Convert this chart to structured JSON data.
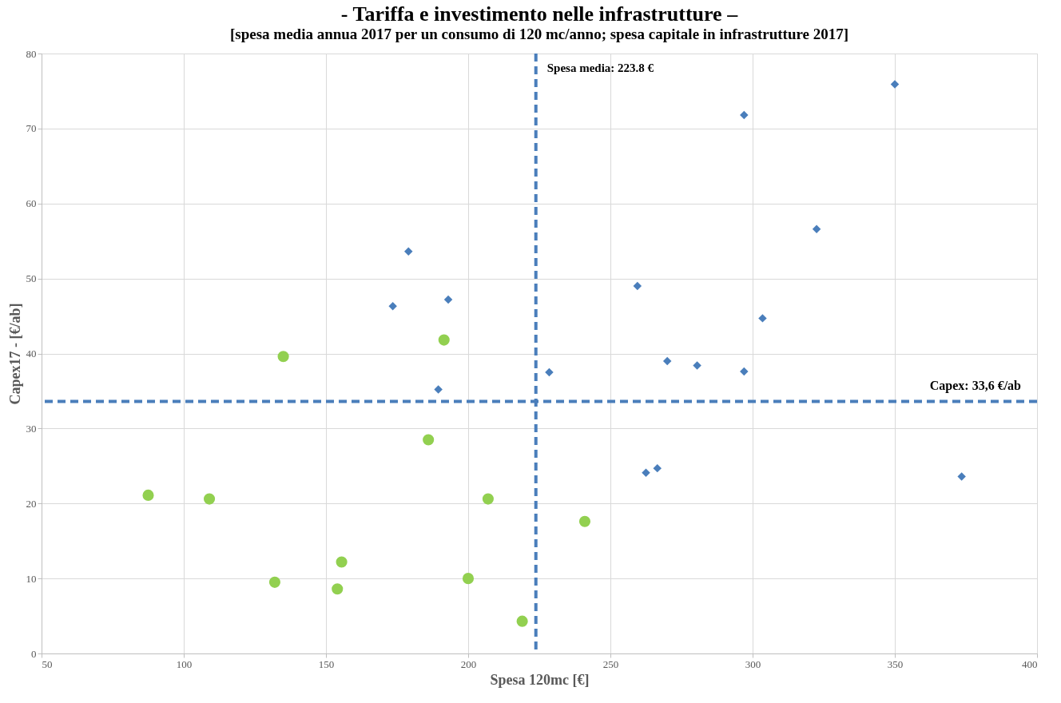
{
  "chart_data": {
    "type": "scatter",
    "title": "- Tariffa e investimento nelle infrastrutture –",
    "subtitle": "[spesa media annua 2017 per un consumo di 120 mc/anno; spesa capitale in infrastrutture 2017]",
    "xlabel": "Spesa 120mc [€]",
    "ylabel": "Capex17 - [€/ab]",
    "xlim": [
      50,
      400
    ],
    "xticks": [
      50,
      100,
      150,
      200,
      250,
      300,
      350,
      400
    ],
    "ylim": [
      0,
      80
    ],
    "yticks": [
      0,
      10,
      20,
      30,
      40,
      50,
      60,
      70,
      80
    ],
    "grid": true,
    "series": [
      {
        "color": "#4a7ebb",
        "marker": "diamond",
        "x": [
          179,
          173.5,
          193,
          189.5,
          228.5,
          259.5,
          270,
          280.5,
          297,
          303.5,
          322.5,
          297,
          350,
          262.5,
          266.5,
          373.5
        ],
        "values": [
          53.6,
          46.3,
          47.2,
          35.2,
          37.5,
          49,
          39,
          38.4,
          37.6,
          44.7,
          56.6,
          71.8,
          75.9,
          24.1,
          24.7,
          23.6
        ]
      },
      {
        "color": "#92d050",
        "marker": "circle",
        "x": [
          135,
          191.5,
          186,
          87.5,
          109,
          132,
          154,
          155.5,
          200,
          207,
          219,
          241
        ],
        "values": [
          39.6,
          41.8,
          28.5,
          21.1,
          20.6,
          9.5,
          8.6,
          12.2,
          10,
          20.6,
          4.3,
          17.6
        ]
      }
    ],
    "ref_lines": [
      {
        "axis": "x",
        "value": 223.8,
        "label": "Spesa media: 223.8 €",
        "color": "#4a7ebb",
        "line_style": "dashed"
      },
      {
        "axis": "y",
        "value": 33.6,
        "label": "Capex: 33,6 €/ab",
        "color": "#4a7ebb",
        "line_style": "dashed"
      }
    ]
  }
}
